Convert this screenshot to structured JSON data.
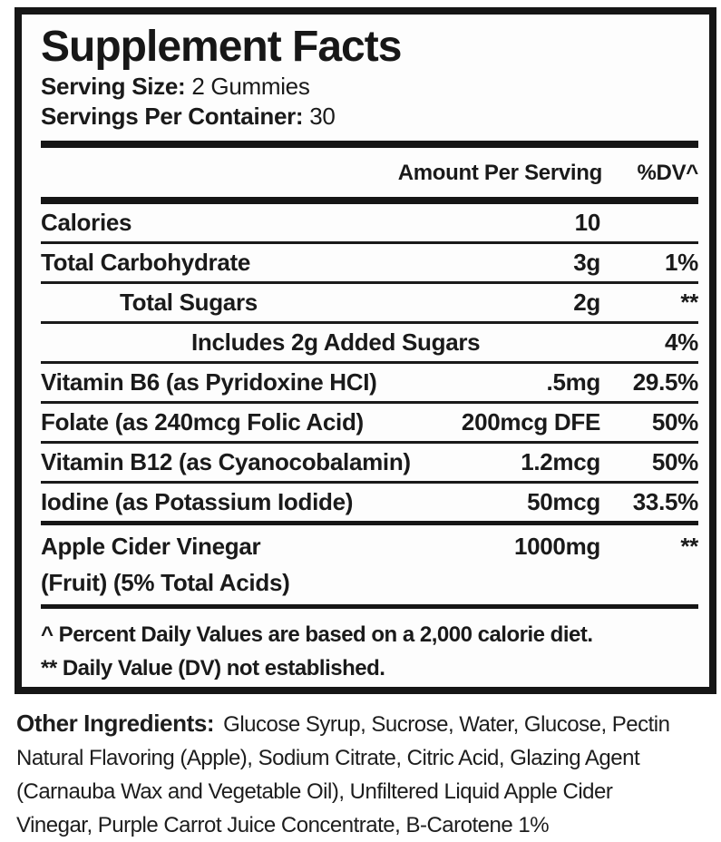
{
  "panel": {
    "title": "Supplement Facts",
    "serving_size": {
      "label": "Serving Size:",
      "value": "2 Gummies"
    },
    "servings_per_container": {
      "label": "Servings Per Container:",
      "value": "30"
    },
    "columns": {
      "amount": "Amount Per Serving",
      "dv": "%DV^"
    },
    "rows": [
      {
        "name": "Calories",
        "amount": "10",
        "dv": ""
      },
      {
        "name": "Total Carbohydrate",
        "amount": "3g",
        "dv": "1%"
      },
      {
        "name": "Total Sugars",
        "amount": "2g",
        "dv": "**"
      },
      {
        "name": "Includes 2g Added Sugars",
        "amount": "",
        "dv": "4%"
      },
      {
        "name": "Vitamin B6 (as Pyridoxine HCI)",
        "amount": ".5mg",
        "dv": "29.5%"
      },
      {
        "name": "Folate (as 240mcg Folic Acid)",
        "amount": "200mcg DFE",
        "dv": "50%"
      },
      {
        "name": "Vitamin B12 (as Cyanocobalamin)",
        "amount": "1.2mcg",
        "dv": "50%"
      },
      {
        "name": "Iodine (as Potassium Iodide)",
        "amount": "50mcg",
        "dv": "33.5%"
      },
      {
        "name": "Apple Cider Vinegar",
        "name_line2": "(Fruit) (5% Total Acids)",
        "amount": "1000mg",
        "dv": "**"
      }
    ],
    "footnotes": [
      "^ Percent Daily Values are based on a 2,000 calorie diet.",
      "** Daily Value (DV) not established."
    ]
  },
  "other_ingredients": {
    "label": "Other Ingredients:",
    "lines": [
      "Glucose Syrup, Sucrose, Water, Glucose, Pectin",
      "Natural Flavoring (Apple), Sodium Citrate, Citric Acid, Glazing Agent",
      "(Carnauba Wax and Vegetable Oil), Unfiltered Liquid Apple Cider",
      "Vinegar, Purple Carrot Juice Concentrate, B-Carotene 1%"
    ]
  },
  "colors": {
    "ink": "#1a1a1a",
    "border": "#161616",
    "background": "#ffffff"
  }
}
